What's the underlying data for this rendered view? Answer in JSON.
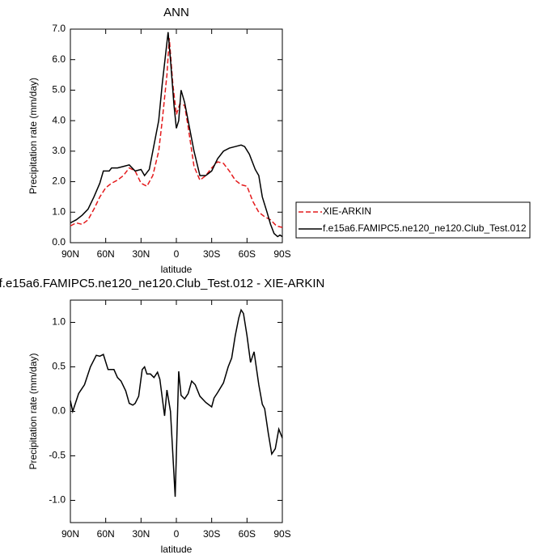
{
  "chart_data": [
    {
      "type": "line",
      "title": "ANN",
      "x_label": "latitude",
      "y_label": "Precipitation rate (mm/day)",
      "xlim": [
        90,
        -90
      ],
      "xticks": [
        {
          "value": 90,
          "label": "90N"
        },
        {
          "value": 60,
          "label": "60N"
        },
        {
          "value": 30,
          "label": "30N"
        },
        0,
        {
          "value": -30,
          "label": "30S"
        },
        {
          "value": -60,
          "label": "60S"
        },
        {
          "value": -90,
          "label": "90S"
        }
      ],
      "ylim": [
        0,
        7
      ],
      "yticks": [
        {
          "value": 0,
          "label": "0.0"
        },
        {
          "value": 1,
          "label": "1.0"
        },
        {
          "value": 2,
          "label": "2.0"
        },
        {
          "value": 3,
          "label": "3.0"
        },
        {
          "value": 4,
          "label": "4.0"
        },
        {
          "value": 5,
          "label": "5.0"
        },
        {
          "value": 6,
          "label": "6.0"
        },
        {
          "value": 7,
          "label": "7.0"
        }
      ],
      "legend": "right",
      "series": [
        {
          "name": "XIE-ARKIN",
          "color": "#e41a1c",
          "dash": "dashed",
          "x": [
            90,
            85,
            80,
            75,
            70,
            65,
            60,
            55,
            50,
            45,
            40,
            35,
            30,
            25,
            20,
            15,
            12,
            8,
            6,
            3,
            0,
            -3,
            -7,
            -10,
            -15,
            -20,
            -25,
            -30,
            -35,
            -40,
            -45,
            -50,
            -55,
            -60,
            -65,
            -70,
            -75,
            -80,
            -85,
            -90
          ],
          "values": [
            0.55,
            0.65,
            0.6,
            0.75,
            1.1,
            1.5,
            1.8,
            1.95,
            2.05,
            2.2,
            2.45,
            2.35,
            1.95,
            1.85,
            2.2,
            3.0,
            4.0,
            5.5,
            6.7,
            5.2,
            4.2,
            4.55,
            4.5,
            3.8,
            2.5,
            2.05,
            2.2,
            2.45,
            2.65,
            2.6,
            2.35,
            2.05,
            1.9,
            1.85,
            1.35,
            1.0,
            0.85,
            0.75,
            0.55,
            0.5
          ]
        },
        {
          "name": "f.e15a6.FAMIPC5.ne120_ne120.Club_Test.012",
          "color": "#000000",
          "dash": "solid",
          "x": [
            90,
            85,
            80,
            75,
            70,
            65,
            62,
            57,
            55,
            50,
            45,
            40,
            35,
            30,
            27,
            23,
            20,
            15,
            12,
            7,
            5,
            2,
            0,
            -2,
            -4,
            -7,
            -10,
            -15,
            -20,
            -25,
            -30,
            -35,
            -40,
            -45,
            -50,
            -55,
            -58,
            -62,
            -67,
            -70,
            -73,
            -77,
            -80,
            -83,
            -86,
            -88,
            -90
          ],
          "values": [
            0.65,
            0.75,
            0.9,
            1.1,
            1.5,
            1.95,
            2.35,
            2.35,
            2.45,
            2.45,
            2.5,
            2.55,
            2.35,
            2.4,
            2.2,
            2.4,
            3.0,
            4.0,
            5.2,
            6.9,
            6.0,
            4.5,
            3.75,
            4.0,
            5.0,
            4.6,
            4.0,
            3.0,
            2.2,
            2.2,
            2.35,
            2.75,
            3.0,
            3.1,
            3.15,
            3.2,
            3.15,
            2.9,
            2.4,
            2.2,
            1.5,
            1.0,
            0.6,
            0.3,
            0.2,
            0.25,
            0.2
          ]
        }
      ]
    },
    {
      "type": "line",
      "title": "f.e15a6.FAMIPC5.ne120_ne120.Club_Test.012 - XIE-ARKIN",
      "x_label": "latitude",
      "y_label": "Precipitation rate (mm/day)",
      "xlim": [
        90,
        -90
      ],
      "xticks": [
        {
          "value": 90,
          "label": "90N"
        },
        {
          "value": 60,
          "label": "60N"
        },
        {
          "value": 30,
          "label": "30N"
        },
        0,
        {
          "value": -30,
          "label": "30S"
        },
        {
          "value": -60,
          "label": "60S"
        },
        {
          "value": -90,
          "label": "90S"
        }
      ],
      "ylim": [
        -1.25,
        1.25
      ],
      "yticks": [
        {
          "value": -1,
          "label": "-1.0"
        },
        {
          "value": -0.5,
          "label": "-0.5"
        },
        {
          "value": 0,
          "label": "0.0"
        },
        {
          "value": 0.5,
          "label": "0.5"
        },
        {
          "value": 1,
          "label": "1.0"
        }
      ],
      "series": [
        {
          "color": "#000000",
          "dash": "solid",
          "x": [
            90,
            88,
            83,
            78,
            73,
            68,
            65,
            62,
            58,
            53,
            50,
            47,
            43,
            40,
            37,
            35,
            32,
            29,
            27,
            25,
            22,
            19,
            16,
            14,
            10,
            8,
            5,
            1,
            -2,
            -4,
            -7,
            -10,
            -13,
            -16,
            -20,
            -25,
            -30,
            -32,
            -35,
            -40,
            -44,
            -47,
            -50,
            -53,
            -55,
            -57,
            -60,
            -63,
            -66,
            -70,
            -73,
            -75,
            -78,
            -81,
            -84,
            -87,
            -90
          ],
          "values": [
            0.12,
            0.0,
            0.2,
            0.3,
            0.5,
            0.63,
            0.62,
            0.64,
            0.47,
            0.47,
            0.38,
            0.34,
            0.23,
            0.09,
            0.07,
            0.09,
            0.17,
            0.47,
            0.5,
            0.42,
            0.42,
            0.38,
            0.44,
            0.36,
            -0.05,
            0.24,
            0.0,
            -0.96,
            0.45,
            0.18,
            0.14,
            0.2,
            0.34,
            0.3,
            0.17,
            0.1,
            0.05,
            0.15,
            0.21,
            0.32,
            0.5,
            0.6,
            0.85,
            1.05,
            1.14,
            1.1,
            0.85,
            0.55,
            0.67,
            0.3,
            0.08,
            0.03,
            -0.24,
            -0.48,
            -0.42,
            -0.2,
            -0.3
          ]
        }
      ]
    }
  ]
}
